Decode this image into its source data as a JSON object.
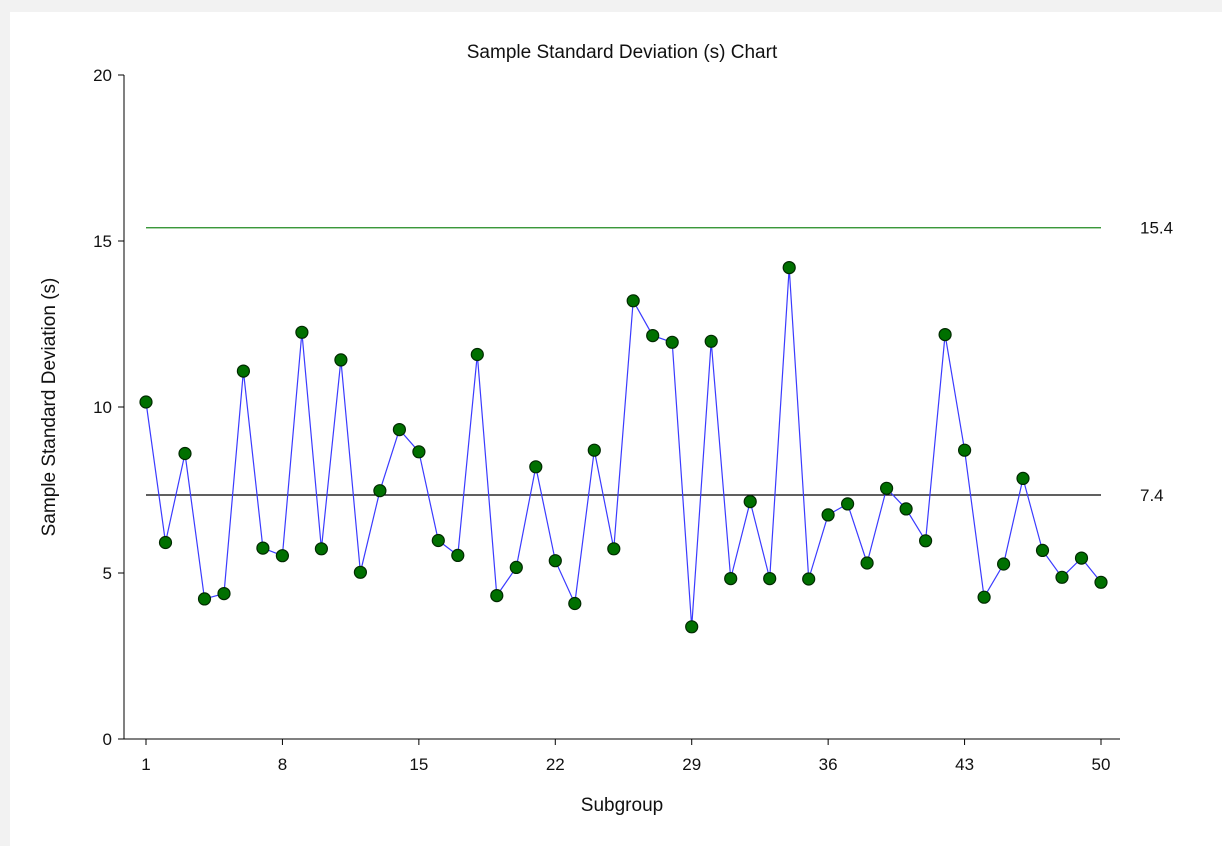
{
  "chart_data": {
    "type": "line",
    "title": "Sample Standard Deviation (s) Chart",
    "xlabel": "Subgroup",
    "ylabel": "Sample Standard Deviation (s)",
    "xlim": [
      1,
      50
    ],
    "ylim": [
      0,
      20
    ],
    "x_ticks": [
      1,
      8,
      15,
      22,
      29,
      36,
      43,
      50
    ],
    "y_ticks": [
      0,
      5,
      10,
      15,
      20
    ],
    "grid": false,
    "colors": {
      "series_line": "#3b3bff",
      "marker_fill": "#007000",
      "marker_stroke": "#002a00",
      "ucl_line": "#1f8a1f",
      "center_line": "#000000",
      "axis": "#000000"
    },
    "reference_lines": [
      {
        "value": 15.4,
        "label": "15.4",
        "color": "#1f8a1f"
      },
      {
        "value": 7.35,
        "label": "7.4",
        "color": "#000000"
      }
    ],
    "series": [
      {
        "x": [
          1,
          2,
          3,
          4,
          5,
          6,
          7,
          8,
          9,
          10,
          11,
          12,
          13,
          14,
          15,
          16,
          17,
          18,
          19,
          20,
          21,
          22,
          23,
          24,
          25,
          26,
          27,
          28,
          29,
          30,
          31,
          32,
          33,
          34,
          35,
          36,
          37,
          38,
          39,
          40,
          41,
          42,
          43,
          44,
          45,
          46,
          47,
          48,
          49,
          50
        ],
        "values": [
          10.15,
          5.92,
          8.6,
          4.22,
          4.38,
          11.08,
          5.75,
          5.52,
          12.25,
          5.73,
          11.42,
          5.02,
          7.48,
          9.32,
          8.65,
          5.98,
          5.53,
          11.58,
          4.32,
          5.17,
          8.2,
          5.37,
          4.08,
          8.7,
          5.73,
          13.2,
          12.15,
          11.95,
          3.38,
          11.98,
          4.83,
          7.15,
          4.83,
          14.2,
          4.82,
          6.75,
          7.08,
          5.3,
          7.55,
          6.93,
          5.97,
          12.18,
          8.7,
          4.27,
          5.27,
          7.85,
          5.68,
          4.87,
          5.45,
          4.72
        ]
      }
    ]
  }
}
